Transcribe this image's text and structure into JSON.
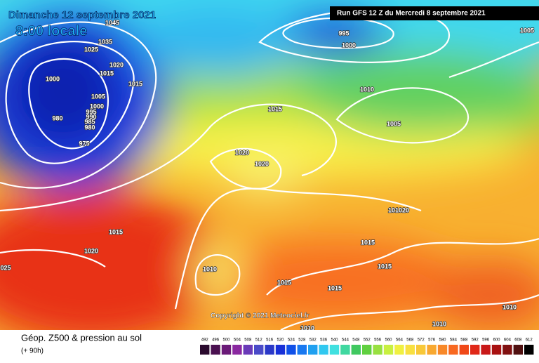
{
  "header": {
    "date": "Dimanche 12 septembre 2021",
    "time": "8:00 locale",
    "run": "Run GFS 12 Z du Mercredi 8 septembre 2021"
  },
  "map": {
    "copyright": "Copyright © 2021 Meteociel.fr",
    "isobar_labels": [
      "1045",
      "1035",
      "1025",
      "1020",
      "1015",
      "1000",
      "1015",
      "1005",
      "1000",
      "995",
      "990",
      "985",
      "980",
      "980",
      "975",
      "995",
      "1000",
      "1005",
      "1010",
      "1015",
      "1005",
      "1020",
      "1020",
      "1015",
      "1020",
      "025",
      "1010",
      "101020",
      "1015",
      "1015",
      "1015",
      "1015",
      "1010",
      "1010",
      "1010"
    ]
  },
  "footer": {
    "title": "Géop. Z500 & pression au sol",
    "lead_time": "(+ 90h)",
    "scale": {
      "labels": [
        "492",
        "496",
        "500",
        "504",
        "508",
        "512",
        "516",
        "520",
        "524",
        "528",
        "532",
        "536",
        "540",
        "544",
        "548",
        "552",
        "556",
        "560",
        "564",
        "568",
        "572",
        "576",
        "580",
        "584",
        "588",
        "592",
        "596",
        "600",
        "604",
        "608",
        "612"
      ],
      "colors": [
        "#2a0a2e",
        "#4a1050",
        "#6a1a78",
        "#8a28a0",
        "#6a3ab8",
        "#4a4ac8",
        "#2a38c8",
        "#1830d8",
        "#1050e8",
        "#1878f0",
        "#20a0f0",
        "#30c8f0",
        "#40e0e0",
        "#40d8a0",
        "#40c860",
        "#60d040",
        "#98e040",
        "#c8f040",
        "#f0f040",
        "#f8e040",
        "#f8c838",
        "#f8a830",
        "#f88828",
        "#f86820",
        "#f04818",
        "#e02818",
        "#c81818",
        "#a81010",
        "#801010",
        "#501010",
        "#000000"
      ]
    }
  }
}
